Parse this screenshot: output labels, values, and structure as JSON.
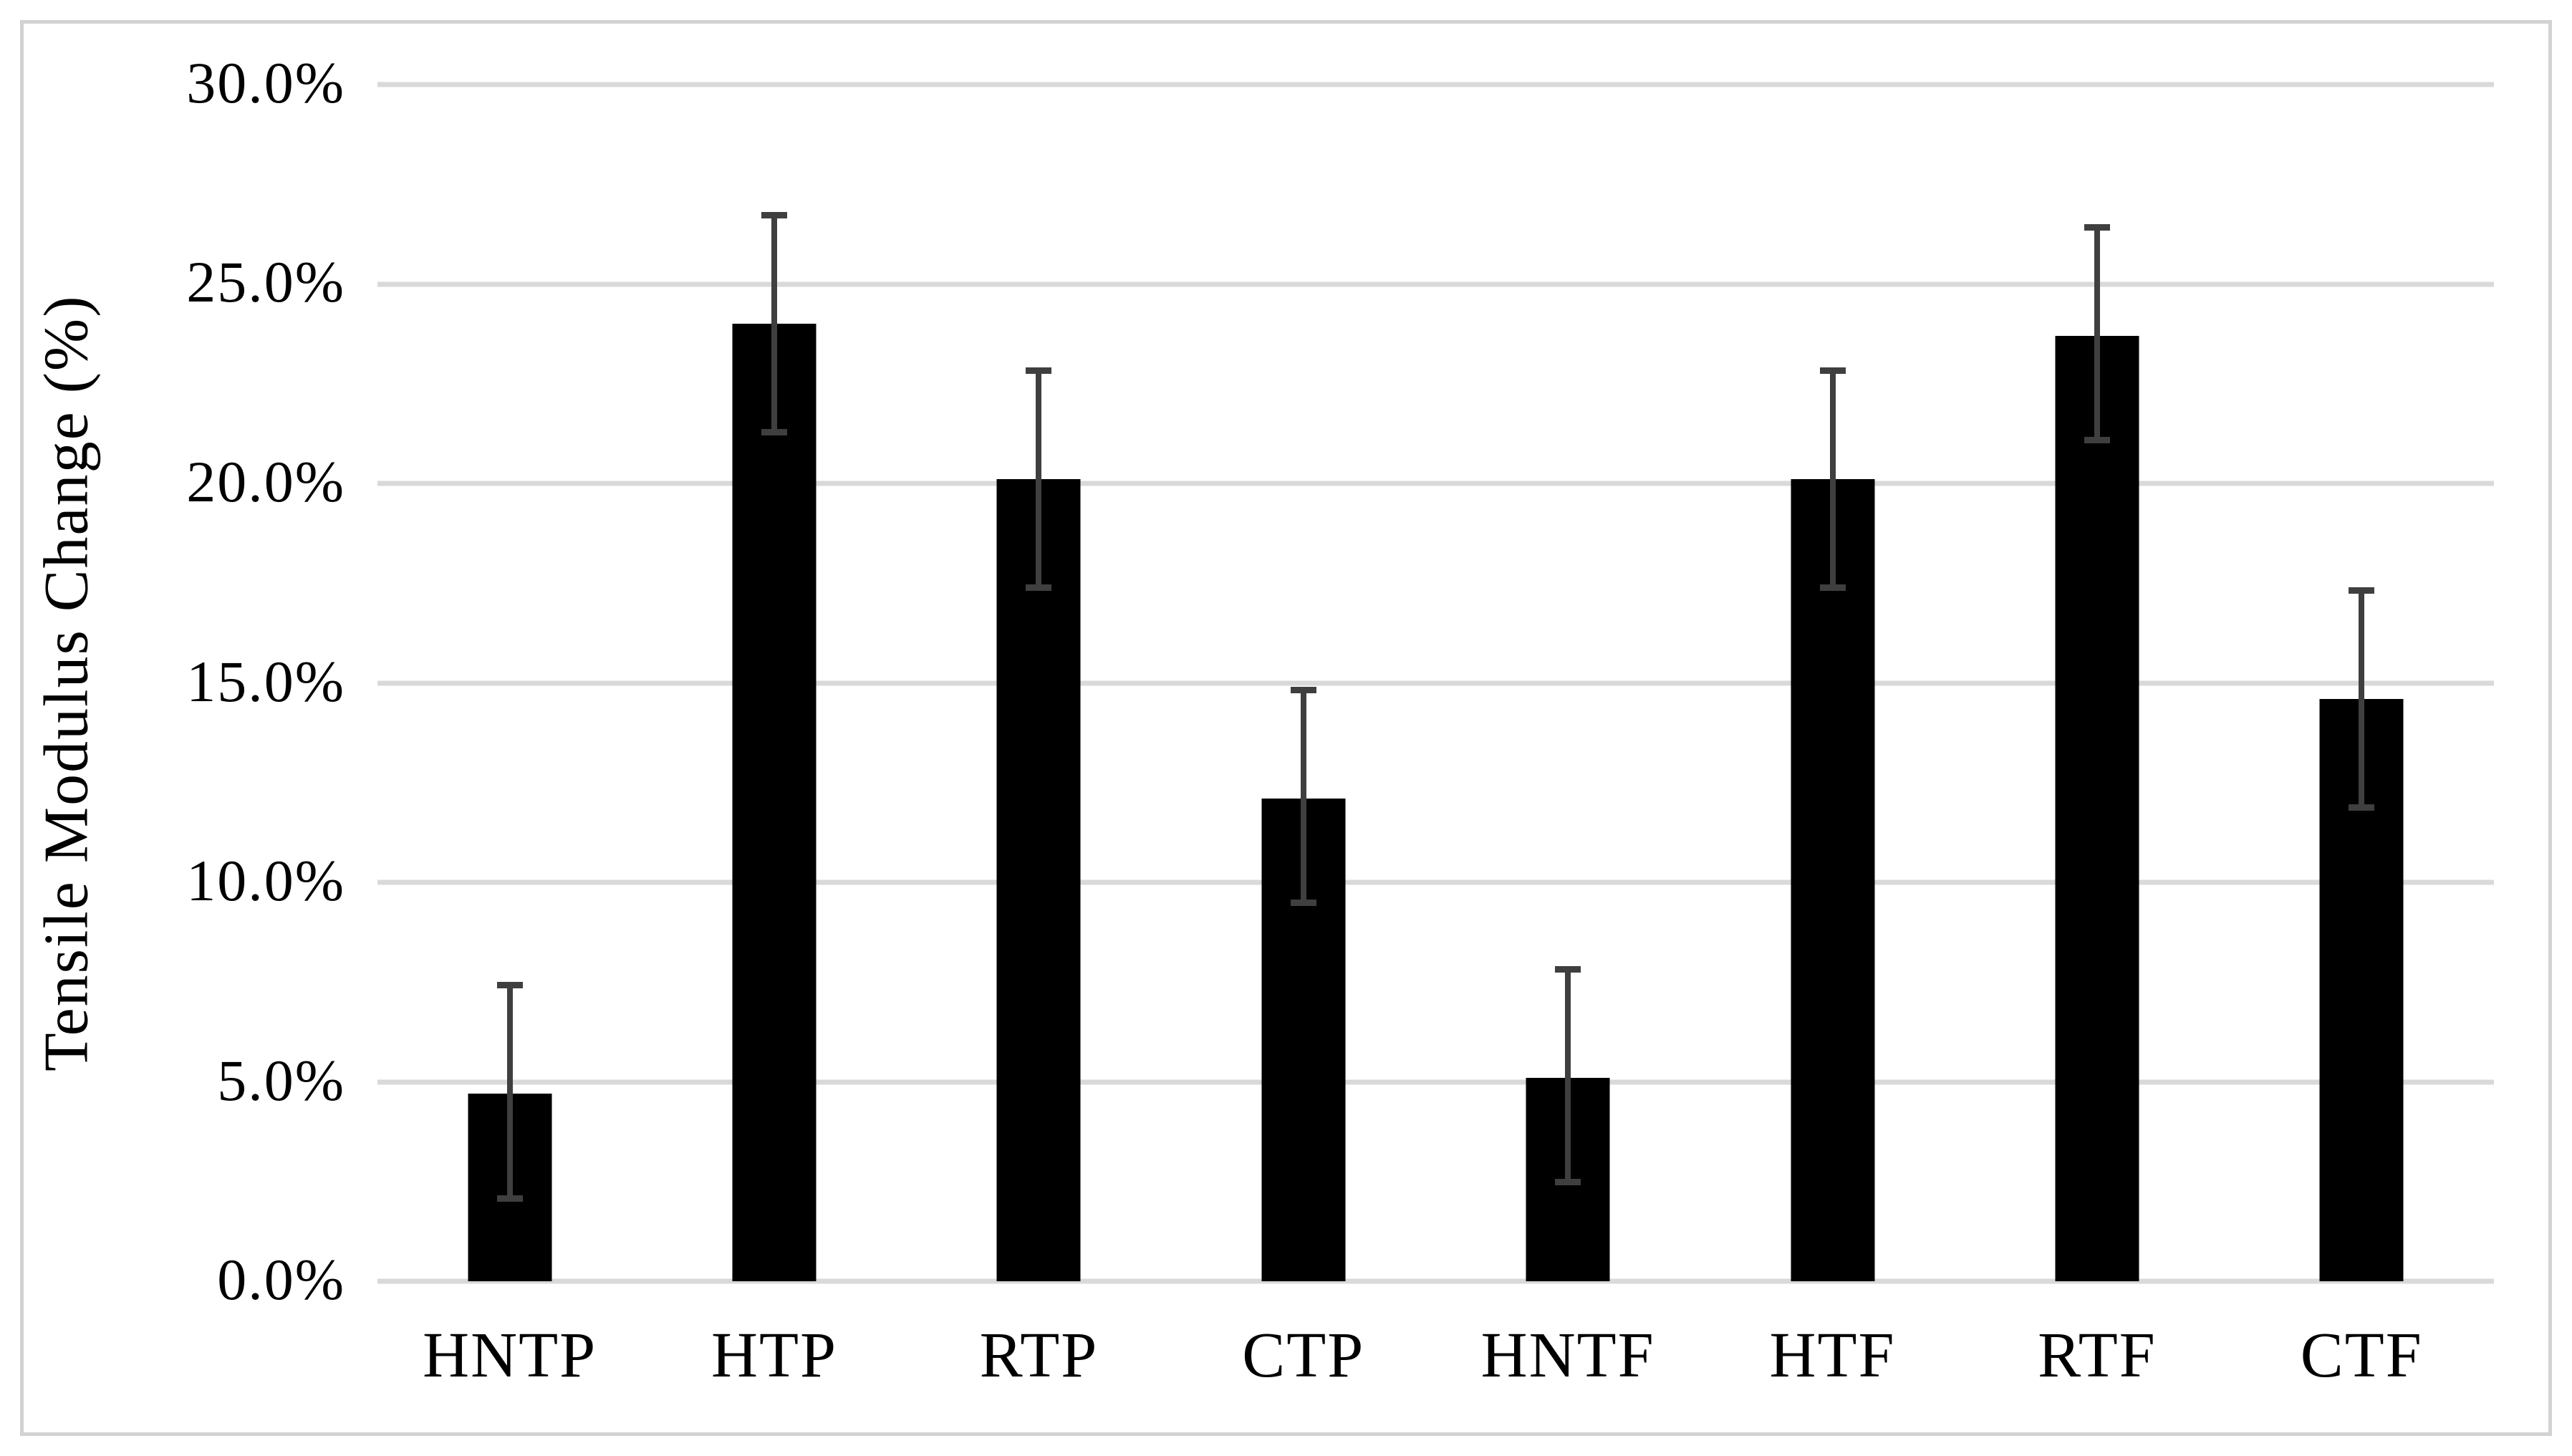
{
  "chart_data": {
    "type": "bar",
    "title": "",
    "xlabel": "",
    "ylabel": "Tensile Modulus Change (%)",
    "categories": [
      "HNTP",
      "HTP",
      "RTP",
      "CTP",
      "HNTF",
      "HTF",
      "RTF",
      "CTF"
    ],
    "series": [
      {
        "name": "Tensile Modulus Change",
        "values": [
          4.7,
          24.0,
          20.1,
          12.1,
          5.1,
          20.1,
          23.7,
          14.6
        ],
        "error_bar_top": [
          7.5,
          26.8,
          22.9,
          14.9,
          7.9,
          22.9,
          26.5,
          17.4
        ],
        "error_bar_bottom": [
          2.0,
          21.2,
          17.3,
          9.4,
          2.4,
          17.3,
          21.0,
          11.8
        ]
      }
    ],
    "y_ticks": [
      {
        "label": "0.0%",
        "value": 0
      },
      {
        "label": "5.0%",
        "value": 5
      },
      {
        "label": "10.0%",
        "value": 10
      },
      {
        "label": "15.0%",
        "value": 15
      },
      {
        "label": "20.0%",
        "value": 20
      },
      {
        "label": "25.0%",
        "value": 25
      },
      {
        "label": "30.0%",
        "value": 30
      }
    ],
    "ylim": [
      0,
      30
    ],
    "grid": true,
    "legend": "none",
    "colors": {
      "bar": "#000000",
      "error_bar": "#3f3f3f",
      "gridline": "#d9d9d9",
      "figure_border": "#d2d2d2",
      "text": "#000000",
      "background": "#ffffff"
    }
  }
}
